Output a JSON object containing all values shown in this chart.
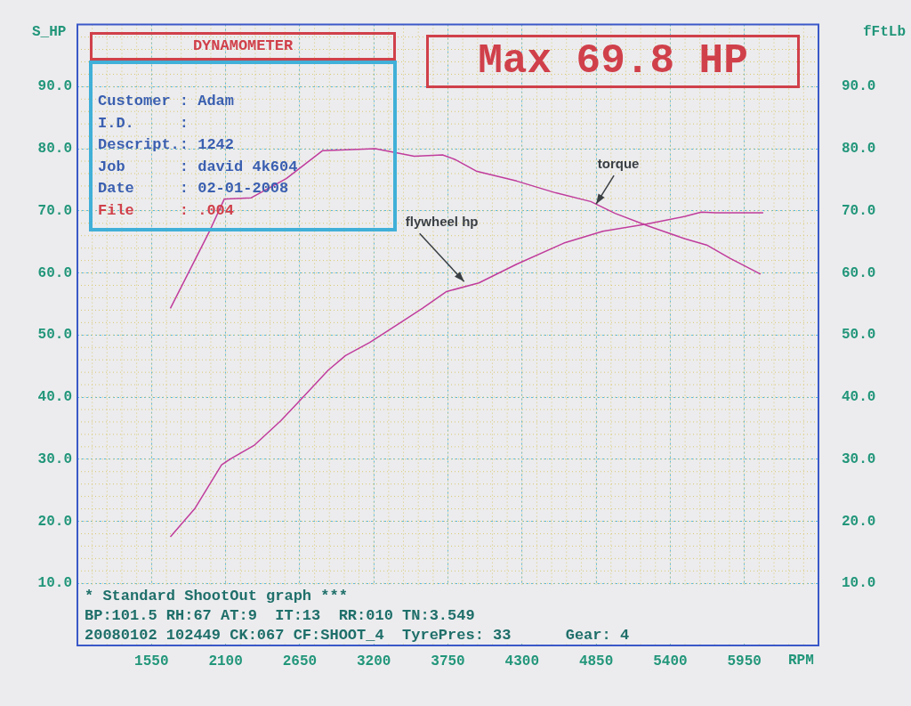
{
  "chart_data": {
    "type": "line",
    "title": "DYNAMOMETER",
    "xlabel": "RPM",
    "ylabel": "S_HP",
    "y2label": "fFtLb",
    "xlim": [
      1000,
      6500
    ],
    "xticks": [
      1550,
      2100,
      2650,
      3200,
      3750,
      4300,
      4850,
      5400,
      5950
    ],
    "ylim": [
      0,
      100
    ],
    "yticks": [
      {
        "value": 10,
        "label": "10.0"
      },
      {
        "value": 20,
        "label": "20.0"
      },
      {
        "value": 30,
        "label": "30.0"
      },
      {
        "value": 40,
        "label": "40.0"
      },
      {
        "value": 50,
        "label": "50.0"
      },
      {
        "value": 60,
        "label": "60.0"
      },
      {
        "value": 70,
        "label": "70.0"
      },
      {
        "value": 80,
        "label": "80.0"
      },
      {
        "value": 90,
        "label": "90.0"
      }
    ],
    "y2lim": [
      0,
      100
    ],
    "y2ticks": [
      {
        "value": 10,
        "label": "10.0"
      },
      {
        "value": 20,
        "label": "20.0"
      },
      {
        "value": 30,
        "label": "30.0"
      },
      {
        "value": 40,
        "label": "40.0"
      },
      {
        "value": 50,
        "label": "50.0"
      },
      {
        "value": 60,
        "label": "60.0"
      },
      {
        "value": 70,
        "label": "70.0"
      },
      {
        "value": 80,
        "label": "80.0"
      },
      {
        "value": 90,
        "label": "90.0"
      }
    ],
    "grid": true,
    "legend": false,
    "marker": "none",
    "line_style": "solid",
    "series": [
      {
        "color": "#c03c9c",
        "x": [
          1690,
          1870,
          2070,
          2140,
          2310,
          2510,
          2680,
          2860,
          2990,
          3170,
          3390,
          3560,
          3740,
          3980,
          4260,
          4610,
          4900,
          5230,
          5510,
          5630,
          5740,
          6090
        ],
        "values": [
          17.5,
          22.0,
          29.1,
          30.1,
          32.2,
          36.2,
          40.1,
          44.3,
          46.7,
          48.8,
          51.9,
          54.3,
          57.0,
          58.4,
          61.4,
          64.8,
          66.7,
          67.9,
          69.1,
          69.8,
          69.7,
          69.7
        ]
      },
      {
        "color": "#c03c9c",
        "axis": "y2",
        "x": [
          1690,
          1980,
          2090,
          2290,
          2550,
          2820,
          3210,
          3500,
          3710,
          3800,
          3960,
          4260,
          4550,
          4810,
          4990,
          5230,
          5510,
          5670,
          5840,
          6070
        ],
        "values": [
          54.3,
          66.7,
          71.9,
          72.1,
          75.2,
          79.7,
          80.0,
          78.8,
          79.0,
          78.3,
          76.4,
          74.8,
          72.9,
          71.5,
          69.6,
          67.6,
          65.5,
          64.5,
          62.4,
          59.8
        ]
      }
    ],
    "annotations": [
      "Max 69.8 HP",
      "Customer : Adam",
      "I.D.     :",
      "Descript.: 1242",
      "Job      : david 4k604",
      "Date     : 02-01-2008",
      "File     : .004",
      "* Standard ShootOut graph ***",
      "BP:101.5 RH:67 AT:9  IT:13  RR:010 TN:3.549",
      "20080102 102449 CK:067 CF:SHOOT_4  TyrePres: 33      Gear: 4",
      {
        "text": "flywheel hp",
        "x": 3870,
        "y": 58.6
      },
      {
        "text": "torque",
        "x": 4850,
        "y": 71.1
      }
    ]
  }
}
